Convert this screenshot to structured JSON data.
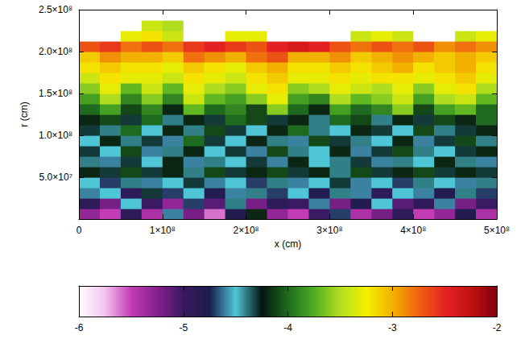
{
  "chart_data": {
    "type": "heatmap",
    "xlabel": "x (cm)",
    "ylabel": "r (cm)",
    "grid": false,
    "xlim": [
      0,
      500000000
    ],
    "ylim": [
      0,
      250000000
    ],
    "xticks": [
      0,
      {
        "value": 100000000,
        "label": "1×10⁸"
      },
      {
        "value": 200000000,
        "label": "2×10⁸"
      },
      {
        "value": 300000000,
        "label": "3×10⁸"
      },
      {
        "value": 400000000,
        "label": "4×10⁸"
      },
      {
        "value": 500000000,
        "label": "5×10⁸"
      }
    ],
    "yticks": [
      {
        "value": 50000000,
        "label": "5.0×10⁷"
      },
      {
        "value": 100000000,
        "label": "1.0×10⁸"
      },
      {
        "value": 150000000,
        "label": "1.5×10⁸"
      },
      {
        "value": 200000000,
        "label": "2.0×10⁸"
      },
      {
        "value": 250000000,
        "label": "2.5×10⁸"
      }
    ],
    "x": [
      12500000,
      37500000,
      62500000,
      87500000,
      112500000,
      137500000,
      162500000,
      187500000,
      212500000,
      237500000,
      262500000,
      287500000,
      312500000,
      337500000,
      362500000,
      387500000,
      412500000,
      437500000,
      462500000,
      487500000
    ],
    "y": [
      6250000,
      18750000,
      31250000,
      43750000,
      56250000,
      68750000,
      81250000,
      93750000,
      106250000,
      118750000,
      131250000,
      143750000,
      156250000,
      168750000,
      181250000,
      193750000,
      206250000,
      218750000,
      231250000,
      243750000
    ],
    "values": [
      [
        -5.3,
        -5.5,
        -4.9,
        -5.4,
        -4.6,
        -5.2,
        -5.6,
        -4.8,
        -4.2,
        -5.3,
        -5.5,
        -5.0,
        -4.7,
        -5.4,
        -5.2,
        -4.9,
        -5.5,
        -5.3,
        -4.8,
        -5.4
      ],
      [
        -4.9,
        -5.2,
        -4.5,
        -5.0,
        -5.3,
        -4.7,
        -5.1,
        -4.4,
        -5.2,
        -4.9,
        -5.0,
        -4.6,
        -5.2,
        -4.8,
        -4.5,
        -5.1,
        -4.9,
        -4.6,
        -5.2,
        -5.0
      ],
      [
        -4.6,
        -4.5,
        -4.9,
        -4.3,
        -4.7,
        -4.5,
        -4.8,
        -4.6,
        -4.4,
        -4.7,
        -4.5,
        -4.8,
        -4.4,
        -4.6,
        -4.9,
        -4.5,
        -4.6,
        -4.8,
        -4.4,
        -4.7
      ],
      [
        -4.5,
        -4.7,
        -4.4,
        -4.6,
        -4.5,
        -4.3,
        -4.6,
        -4.5,
        -4.7,
        -4.4,
        -4.6,
        -4.5,
        -4.3,
        -4.6,
        -4.5,
        -4.7,
        -4.4,
        -4.5,
        -4.6,
        -4.4
      ],
      [
        -4.2,
        -4.3,
        -4.1,
        -4.3,
        -4.2,
        -4.4,
        -4.1,
        -4.3,
        -4.2,
        -4.1,
        -4.3,
        -4.2,
        -4.4,
        -4.1,
        -4.3,
        -4.2,
        -4.1,
        -4.3,
        -4.2,
        -4.3
      ],
      [
        -4.4,
        -4.6,
        -4.3,
        -4.5,
        -4.2,
        -4.6,
        -4.4,
        -4.5,
        -4.3,
        -4.6,
        -4.2,
        -4.5,
        -4.4,
        -4.3,
        -4.6,
        -4.4,
        -4.5,
        -4.2,
        -4.4,
        -4.6
      ],
      [
        -4.3,
        -4.5,
        -4.1,
        -4.6,
        -4.4,
        -4.2,
        -4.5,
        -4.3,
        -4.6,
        -4.1,
        -4.4,
        -4.5,
        -4.2,
        -4.6,
        -4.3,
        -4.1,
        -4.4,
        -4.5,
        -4.3,
        -4.2
      ],
      [
        -4.5,
        -4.2,
        -4.4,
        -4.3,
        -4.6,
        -4.0,
        -4.3,
        -4.5,
        -4.2,
        -4.4,
        -4.6,
        -4.1,
        -4.3,
        -4.4,
        -4.5,
        -4.2,
        -4.6,
        -4.3,
        -4.1,
        -4.4
      ],
      [
        -4.3,
        -4.4,
        -4.0,
        -4.5,
        -4.2,
        -4.4,
        -4.1,
        -4.3,
        -4.5,
        -4.2,
        -4.0,
        -4.4,
        -4.5,
        -4.2,
        -4.3,
        -4.5,
        -4.1,
        -4.4,
        -4.3,
        -4.2
      ],
      [
        -4.2,
        -4.1,
        -4.3,
        -4.0,
        -4.4,
        -4.2,
        -4.3,
        -4.0,
        -4.1,
        -4.3,
        -4.2,
        -4.4,
        -4.0,
        -4.1,
        -4.4,
        -4.2,
        -4.3,
        -4.1,
        -4.2,
        -4.0
      ],
      [
        -4.0,
        -3.8,
        -4.1,
        -3.9,
        -4.2,
        -3.7,
        -4.0,
        -3.9,
        -4.1,
        -3.6,
        -4.0,
        -4.2,
        -3.8,
        -4.0,
        -3.9,
        -3.6,
        -4.1,
        -3.8,
        -3.7,
        -4.0
      ],
      [
        -3.8,
        -3.5,
        -3.9,
        -3.6,
        -3.9,
        -3.4,
        -3.7,
        -3.8,
        -3.6,
        -3.3,
        -3.8,
        -3.9,
        -3.5,
        -3.7,
        -3.6,
        -3.4,
        -3.8,
        -3.5,
        -3.4,
        -3.7
      ],
      [
        -3.6,
        -3.3,
        -3.7,
        -3.4,
        -3.7,
        -3.3,
        -3.5,
        -3.6,
        -3.3,
        -3.2,
        -3.6,
        -3.5,
        -3.3,
        -3.4,
        -3.5,
        -3.3,
        -3.6,
        -3.3,
        -3.2,
        -3.5
      ],
      [
        -3.4,
        -3.2,
        -3.3,
        -3.3,
        -3.4,
        -3.2,
        -3.3,
        -3.4,
        -3.2,
        -3.1,
        -3.3,
        -3.3,
        -3.2,
        -3.3,
        -3.2,
        -3.2,
        -3.3,
        -3.2,
        -3.1,
        -3.3
      ],
      [
        -3.2,
        -3.1,
        -3.2,
        -3.2,
        -3.3,
        -3.1,
        -3.2,
        -3.3,
        -3.1,
        -3.0,
        -3.2,
        -3.2,
        -3.1,
        -3.2,
        -3.1,
        -3.0,
        -3.2,
        -3.1,
        -3.0,
        -3.2
      ],
      [
        -3.1,
        -2.9,
        -3.0,
        -3.0,
        -3.1,
        -2.8,
        -2.9,
        -3.0,
        -2.8,
        -2.7,
        -3.0,
        -3.0,
        -2.9,
        -3.1,
        -3.0,
        -2.9,
        -3.0,
        -3.1,
        -3.0,
        -3.1
      ],
      [
        -2.7,
        -2.6,
        -2.8,
        -2.7,
        -2.8,
        -2.6,
        -2.5,
        -2.6,
        -2.7,
        -2.5,
        -2.4,
        -2.5,
        -2.7,
        -2.8,
        -2.7,
        -2.8,
        -2.7,
        -2.9,
        -2.8,
        -2.9
      ],
      [
        -6,
        -6,
        -3.3,
        -3.2,
        -3.4,
        -6,
        -6,
        -3.3,
        -3.3,
        -6,
        -6,
        -6,
        -6,
        -3.4,
        -3.3,
        -3.4,
        -6,
        -6,
        -3.4,
        -3.3
      ],
      [
        -6,
        -6,
        -6,
        -3.4,
        -3.5,
        -6,
        -6,
        -6,
        -6,
        -6,
        -6,
        -6,
        -6,
        -6,
        -6,
        -6,
        -6,
        -6,
        -6,
        -6
      ],
      [
        -6,
        -6,
        -6,
        -6,
        -6,
        -6,
        -6,
        -6,
        -6,
        -6,
        -6,
        -6,
        -6,
        -6,
        -6,
        -6,
        -6,
        -6,
        -6,
        -6
      ]
    ],
    "colorbar": {
      "range": [
        -6,
        -2
      ],
      "ticks": [
        -6,
        -5,
        -4,
        -3,
        -2
      ]
    }
  }
}
